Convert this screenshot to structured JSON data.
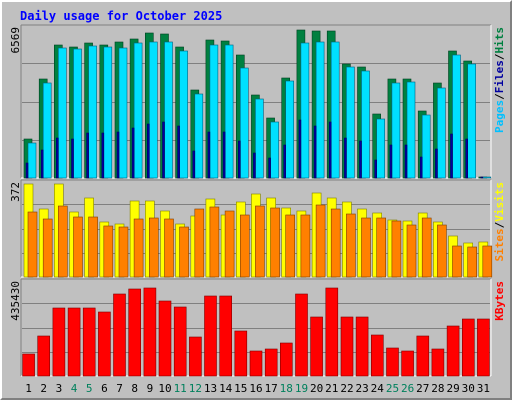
{
  "title": "Daily usage for October 2025",
  "colors": {
    "background": "#C0C0C0",
    "title": "#0000FF",
    "hits": "#008040",
    "files": "#00E0FF",
    "pages": "#0000A0",
    "visits": "#FFFF00",
    "sites": "#FF8000",
    "kbytes": "#FF0000",
    "weekday_label": "#000000",
    "weekend_label": "#00805C"
  },
  "chart_data": [
    {
      "type": "bar",
      "categories": [
        "1",
        "2",
        "3",
        "4",
        "5",
        "6",
        "7",
        "8",
        "9",
        "10",
        "11",
        "12",
        "13",
        "14",
        "15",
        "16",
        "17",
        "18",
        "19",
        "20",
        "21",
        "22",
        "23",
        "24",
        "25",
        "26",
        "27",
        "28",
        "29",
        "30",
        "31"
      ],
      "weekend_days": [
        "4",
        "5",
        "11",
        "12",
        "18",
        "19",
        "25",
        "26"
      ],
      "max_label": "6569",
      "ylim": [
        0,
        6569
      ],
      "grid": true,
      "right_label_parts": [
        "Pages",
        "Files",
        "Hits"
      ],
      "series": [
        {
          "name": "Hits",
          "values": [
            1710,
            4360,
            5850,
            5770,
            5930,
            5850,
            6000,
            6130,
            6380,
            6340,
            5780,
            3880,
            6070,
            6020,
            5410,
            3640,
            2630,
            4400,
            6520,
            6500,
            6500,
            5040,
            4880,
            2800,
            4350,
            4350,
            2970,
            4200,
            5600,
            5170,
            1
          ]
        },
        {
          "name": "Files",
          "values": [
            1550,
            4200,
            5750,
            5670,
            5830,
            5760,
            5750,
            5960,
            5990,
            5990,
            5600,
            3720,
            5870,
            5850,
            4860,
            3500,
            2480,
            4270,
            5950,
            6000,
            5990,
            4900,
            4720,
            2610,
            4180,
            4220,
            2780,
            3960,
            5430,
            5040,
            1
          ]
        },
        {
          "name": "Pages",
          "values": [
            650,
            1250,
            1750,
            1700,
            1980,
            2000,
            2050,
            2200,
            2400,
            2460,
            2310,
            1180,
            2010,
            2030,
            1620,
            1120,
            880,
            1440,
            2550,
            2310,
            2450,
            1780,
            1630,
            780,
            1450,
            1460,
            910,
            1290,
            1920,
            1720,
            1
          ]
        }
      ]
    },
    {
      "type": "bar",
      "categories": [
        "1",
        "2",
        "3",
        "4",
        "5",
        "6",
        "7",
        "8",
        "9",
        "10",
        "11",
        "12",
        "13",
        "14",
        "15",
        "16",
        "17",
        "18",
        "19",
        "20",
        "21",
        "22",
        "23",
        "24",
        "25",
        "26",
        "27",
        "28",
        "29",
        "30",
        "31"
      ],
      "max_label": "372",
      "ylim": [
        0,
        372
      ],
      "grid": true,
      "right_label_parts": [
        "Sites",
        "Visits"
      ],
      "series": [
        {
          "name": "Visits",
          "values": [
            372,
            270,
            370,
            260,
            315,
            220,
            212,
            305,
            305,
            265,
            212,
            244,
            312,
            250,
            300,
            330,
            315,
            275,
            265,
            335,
            316,
            300,
            272,
            255,
            228,
            222,
            255,
            218,
            164,
            134,
            141
          ]
        },
        {
          "name": "Sites",
          "values": [
            260,
            230,
            285,
            240,
            238,
            204,
            198,
            230,
            235,
            232,
            198,
            272,
            278,
            262,
            248,
            285,
            275,
            247,
            247,
            286,
            270,
            252,
            237,
            235,
            222,
            209,
            237,
            207,
            124,
            120,
            126
          ]
        }
      ]
    },
    {
      "type": "bar",
      "categories": [
        "1",
        "2",
        "3",
        "4",
        "5",
        "6",
        "7",
        "8",
        "9",
        "10",
        "11",
        "12",
        "13",
        "14",
        "15",
        "16",
        "17",
        "18",
        "19",
        "20",
        "21",
        "22",
        "23",
        "24",
        "25",
        "26",
        "27",
        "28",
        "29",
        "30",
        "31"
      ],
      "max_label": "435430",
      "ylim": [
        0,
        435430
      ],
      "grid": true,
      "right_label_parts": [
        "KBytes"
      ],
      "series": [
        {
          "name": "KBytes",
          "values": [
            105000,
            186000,
            320000,
            318000,
            320000,
            300000,
            383000,
            405000,
            410000,
            351000,
            322000,
            184000,
            373000,
            375000,
            210000,
            116000,
            128000,
            154000,
            386000,
            275000,
            411000,
            278000,
            277000,
            192000,
            132000,
            118000,
            186000,
            125000,
            235000,
            266000,
            266000
          ]
        }
      ]
    }
  ]
}
